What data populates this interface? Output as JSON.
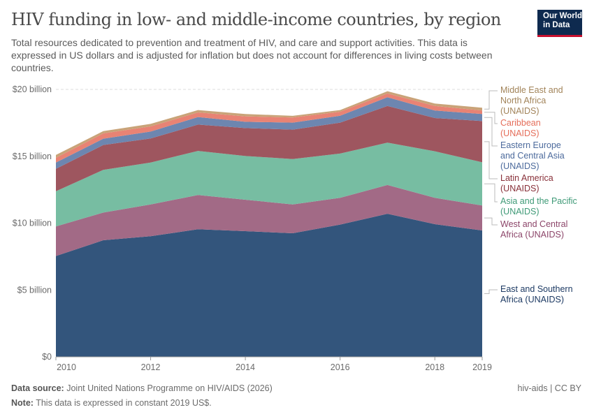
{
  "header": {
    "title": "HIV funding in low- and middle-income countries, by region",
    "subtitle": "Total resources dedicated to prevention and treatment of HIV, and care and support activities. This data is expressed in US dollars and is adjusted for inflation but does not account for differences in living costs between countries.",
    "logo": "Our World in Data"
  },
  "footer": {
    "source_label": "Data source:",
    "source": "Joint United Nations Programme on HIV/AIDS (2026)",
    "note_label": "Note:",
    "note": "This data is expressed in constant 2019 US$.",
    "license": "hiv-aids | CC BY"
  },
  "chart_data": {
    "type": "area",
    "stacked": true,
    "grid": true,
    "legend": "right",
    "x": [
      2010,
      2011,
      2012,
      2013,
      2014,
      2015,
      2016,
      2017,
      2018,
      2019
    ],
    "xticks": [
      "2010",
      "2012",
      "2014",
      "2016",
      "2018",
      "2019"
    ],
    "yticks": [
      "$0",
      "$5 billion",
      "$10 billion",
      "$15 billion",
      "$20 billion"
    ],
    "ylim": [
      0,
      20
    ],
    "yunit": "billion US$",
    "series": [
      {
        "name": "East and Southern Africa (UNAIDS)",
        "color": "#33557c",
        "label_color": "#1d3a63",
        "values": [
          7.54,
          8.72,
          9.02,
          9.54,
          9.4,
          9.24,
          9.89,
          10.7,
          9.92,
          9.45
        ]
      },
      {
        "name": "West and Central Africa (UNAIDS)",
        "color": "#a26a86",
        "label_color": "#8c4569",
        "values": [
          2.21,
          2.07,
          2.38,
          2.56,
          2.35,
          2.16,
          2.0,
          2.15,
          1.97,
          1.87
        ]
      },
      {
        "name": "Asia and the Pacific (UNAIDS)",
        "color": "#77bda2",
        "label_color": "#3f9a77",
        "values": [
          2.63,
          3.19,
          3.13,
          3.3,
          3.27,
          3.39,
          3.31,
          3.17,
          3.48,
          3.23
        ]
      },
      {
        "name": "Latin America (UNAIDS)",
        "color": "#9e565f",
        "label_color": "#883039",
        "values": [
          1.68,
          1.86,
          1.8,
          1.97,
          2.09,
          2.2,
          2.31,
          2.74,
          2.49,
          3.08
        ]
      },
      {
        "name": "Eastern Europe and Central Asia (UNAIDS)",
        "color": "#6d86b0",
        "label_color": "#4c6a9c",
        "values": [
          0.47,
          0.47,
          0.52,
          0.56,
          0.47,
          0.52,
          0.52,
          0.65,
          0.56,
          0.53
        ]
      },
      {
        "name": "Caribbean (UNAIDS)",
        "color": "#e88374",
        "label_color": "#e56e5a",
        "values": [
          0.35,
          0.4,
          0.38,
          0.35,
          0.4,
          0.39,
          0.3,
          0.28,
          0.34,
          0.26
        ]
      },
      {
        "name": "Middle East and North Africa (UNAIDS)",
        "color": "#c9a378",
        "label_color": "#a2845a",
        "values": [
          0.22,
          0.17,
          0.19,
          0.17,
          0.18,
          0.12,
          0.12,
          0.17,
          0.18,
          0.21
        ]
      }
    ]
  }
}
